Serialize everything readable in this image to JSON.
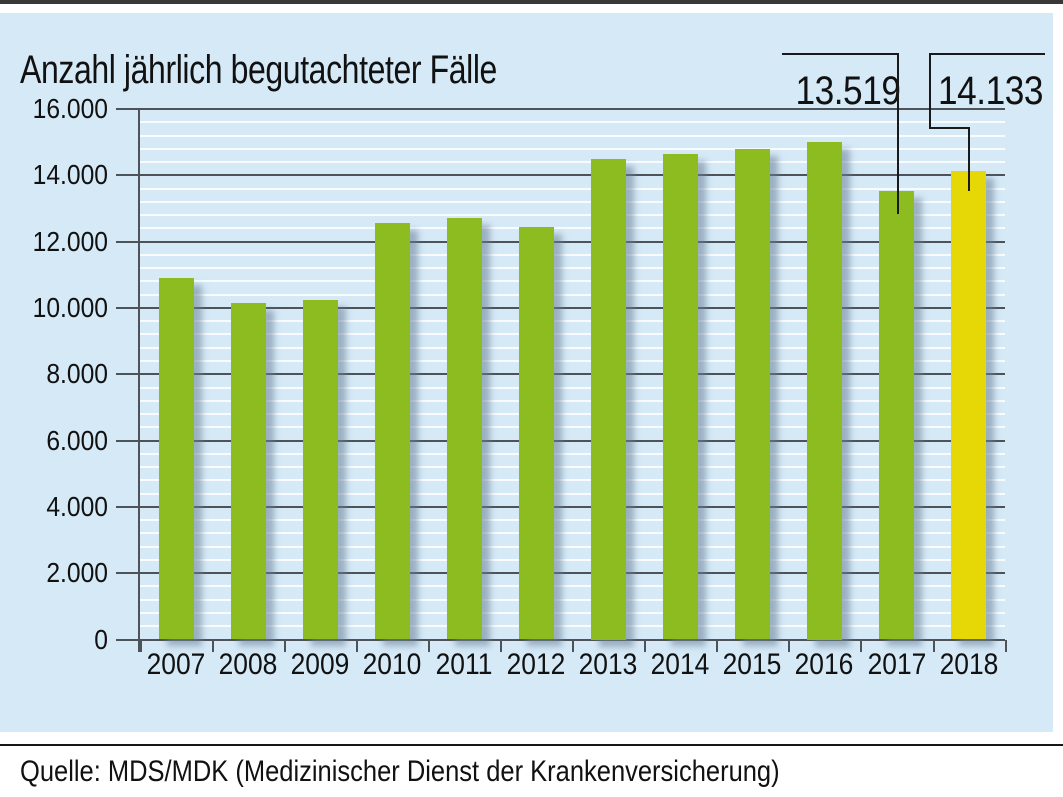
{
  "title": "Anzahl jährlich begutachteter Fälle",
  "source": "Quelle: MDS/MDK (Medizinischer Dienst der Krankenversicherung)",
  "chart_data": {
    "type": "bar",
    "title": "Anzahl jährlich begutachteter Fälle",
    "categories": [
      "2007",
      "2008",
      "2009",
      "2010",
      "2011",
      "2012",
      "2013",
      "2014",
      "2015",
      "2016",
      "2017",
      "2018"
    ],
    "values": [
      10900,
      10150,
      10250,
      12550,
      12700,
      12450,
      14500,
      14650,
      14800,
      15000,
      13519,
      14133
    ],
    "highlighted_category": "2018",
    "annotations": [
      {
        "category": "2017",
        "label": "13.519",
        "value": 13519
      },
      {
        "category": "2018",
        "label": "14.133",
        "value": 14133
      }
    ],
    "ylim": [
      0,
      16000
    ],
    "ytick_step": 2000,
    "ytick_labels": [
      "0",
      "2.000",
      "4.000",
      "6.000",
      "8.000",
      "10.000",
      "12.000",
      "14.000",
      "16.000"
    ],
    "minor_grid_step": 400,
    "grid": "major dark horizontal every 2000, minor white horizontal every 400",
    "legend": "none",
    "colors": {
      "bar": "#8cbc20",
      "highlight_bar": "#e6d806",
      "panel_background": "#d5e9f7",
      "major_grid": "#4d5358",
      "minor_grid": "#ffffff",
      "callout_line": "#1a1a1a"
    }
  }
}
